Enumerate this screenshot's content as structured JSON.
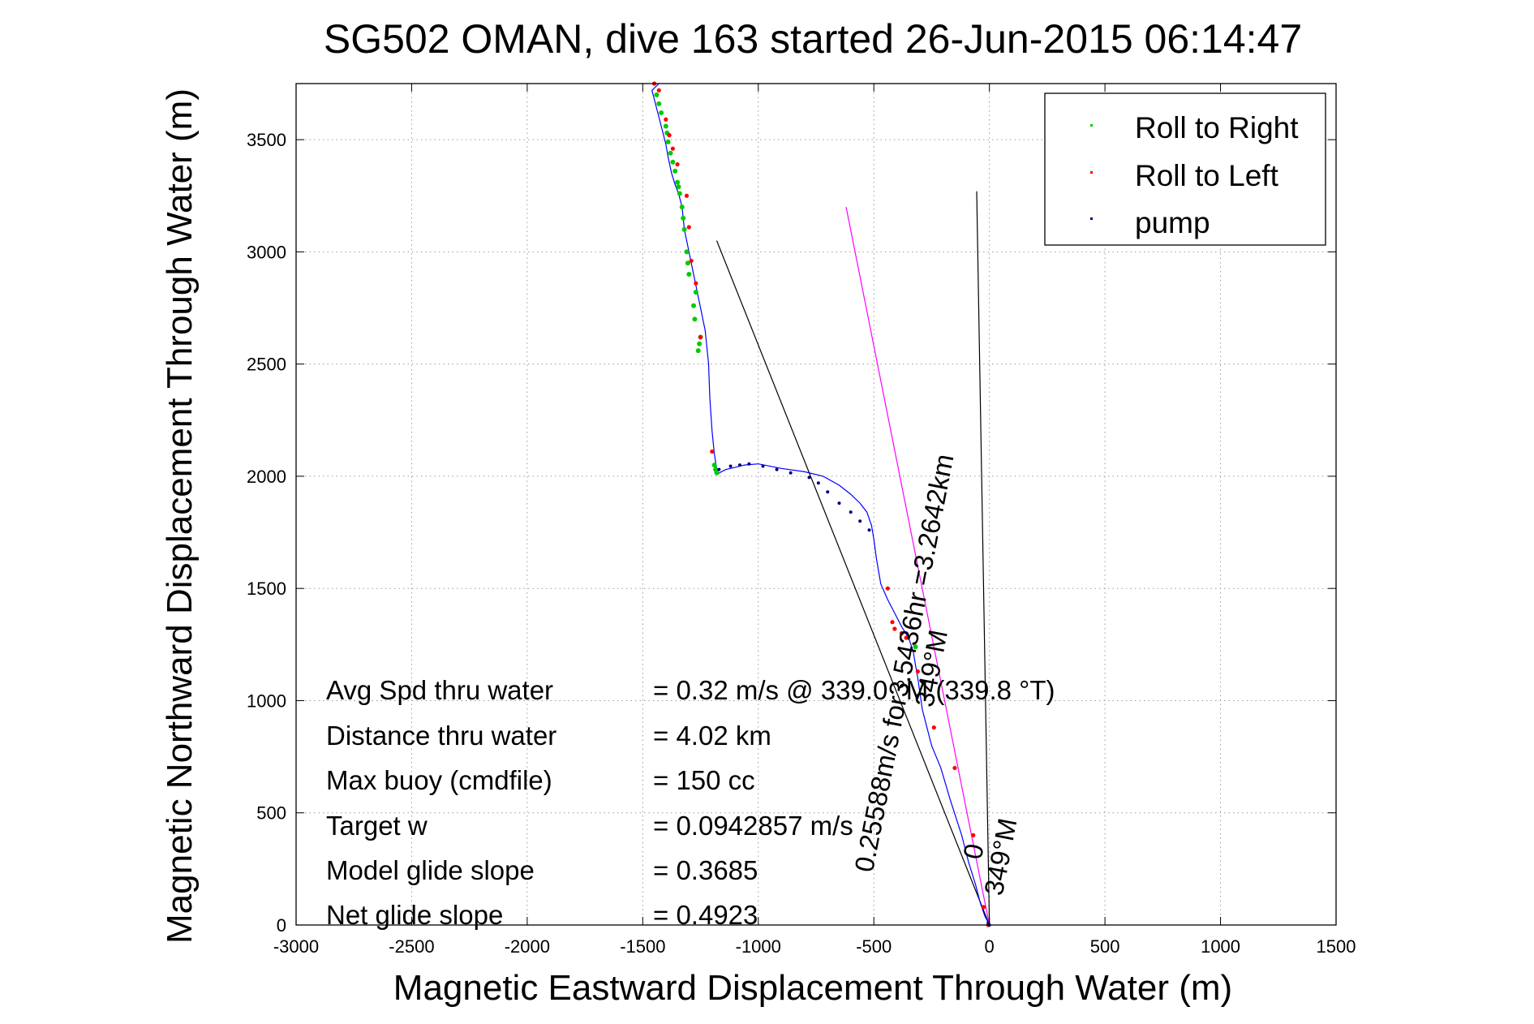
{
  "chart_data": {
    "type": "scatter",
    "title": "SG502 OMAN, dive 163 started 26-Jun-2015 06:14:47",
    "xlabel": "Magnetic Eastward Displacement Through Water (m)",
    "ylabel": "Magnetic Northward Displacement Through Water (m)",
    "xlim": [
      -3000,
      1500
    ],
    "ylim": [
      0,
      3750
    ],
    "x_ticks": [
      -3000,
      -2500,
      -2000,
      -1500,
      -1000,
      -500,
      0,
      500,
      1000,
      1500
    ],
    "y_ticks": [
      0,
      500,
      1000,
      1500,
      2000,
      2500,
      3000,
      3500
    ],
    "grid": true,
    "legend": {
      "placement": "top-right",
      "entries": [
        {
          "label": "Roll to Right",
          "color": "#00cc00"
        },
        {
          "label": "Roll to Left",
          "color": "#ff0000"
        },
        {
          "label": "pump",
          "color": "#000080"
        }
      ]
    },
    "track": {
      "color": "#0000ff",
      "x": [
        0,
        -20,
        -40,
        -60,
        -90,
        -120,
        -170,
        -210,
        -250,
        -270,
        -290,
        -300,
        -310,
        -320,
        -330,
        -350,
        -380,
        -410,
        -440,
        -470,
        -480,
        -490,
        -500,
        -510,
        -530,
        -560,
        -600,
        -650,
        -720,
        -800,
        -900,
        -1000,
        -1060,
        -1100,
        -1140,
        -1160,
        -1175,
        -1180,
        -1190,
        -1200,
        -1210,
        -1215,
        -1220,
        -1225,
        -1230,
        -1240,
        -1250,
        -1260,
        -1270,
        -1280,
        -1290,
        -1300,
        -1310,
        -1320,
        -1330,
        -1345,
        -1360,
        -1375,
        -1390,
        -1400,
        -1410,
        -1420,
        -1430,
        -1440,
        -1450,
        -1460,
        -1430
      ],
      "y": [
        0,
        40,
        100,
        180,
        280,
        400,
        560,
        700,
        800,
        880,
        960,
        1030,
        1100,
        1160,
        1220,
        1280,
        1330,
        1390,
        1450,
        1520,
        1580,
        1640,
        1720,
        1780,
        1840,
        1880,
        1920,
        1960,
        2000,
        2020,
        2035,
        2055,
        2050,
        2040,
        2030,
        2020,
        2010,
        2030,
        2100,
        2200,
        2350,
        2500,
        2550,
        2600,
        2650,
        2700,
        2750,
        2800,
        2850,
        2900,
        2950,
        3000,
        3050,
        3100,
        3200,
        3260,
        3300,
        3350,
        3420,
        3480,
        3520,
        3560,
        3600,
        3640,
        3680,
        3720,
        3750
      ]
    },
    "roll_right": {
      "color": "#00cc00",
      "x": [
        -1190,
        -1185,
        -1180,
        -1260,
        -1255,
        -1250,
        -1275,
        -1280,
        -1270,
        -1300,
        -1305,
        -1310,
        -1320,
        -1325,
        -1330,
        -1340,
        -1345,
        -1350,
        -1360,
        -1370,
        -1380,
        -1390,
        -1395,
        -1400,
        -1420,
        -1430,
        -1440,
        -320
      ],
      "y": [
        2050,
        2030,
        2015,
        2560,
        2590,
        2620,
        2700,
        2760,
        2820,
        2900,
        2950,
        3000,
        3100,
        3150,
        3200,
        3260,
        3290,
        3310,
        3360,
        3400,
        3440,
        3490,
        3530,
        3560,
        3620,
        3660,
        3700,
        1240
      ]
    },
    "roll_left": {
      "color": "#ff0000",
      "x": [
        -1200,
        -1250,
        -1270,
        -1290,
        -1300,
        -1310,
        -1350,
        -1370,
        -1385,
        -1400,
        -1430,
        -1450,
        -440,
        -420,
        -410,
        -380,
        -360,
        -310,
        -240,
        -150,
        -70,
        -25,
        -5
      ],
      "y": [
        2110,
        2620,
        2860,
        2960,
        3110,
        3250,
        3390,
        3460,
        3520,
        3590,
        3720,
        3750,
        1500,
        1350,
        1320,
        1300,
        1280,
        1130,
        880,
        700,
        400,
        80,
        0
      ]
    },
    "pump": {
      "color": "#000080",
      "x": [
        -1170,
        -1120,
        -1080,
        -1040,
        -980,
        -920,
        -860,
        -780,
        -740,
        -700,
        -650,
        -600,
        -560,
        -520,
        0,
        -5
      ],
      "y": [
        2030,
        2045,
        2050,
        2055,
        2045,
        2030,
        2015,
        1995,
        1970,
        1930,
        1880,
        1840,
        1800,
        1760,
        0,
        10
      ]
    },
    "lines": [
      {
        "color": "#000000",
        "x": [
          -1180,
          0
        ],
        "y": [
          3050,
          0
        ]
      },
      {
        "color": "#ff00ff",
        "x": [
          -620,
          0
        ],
        "y": [
          3200,
          0
        ]
      },
      {
        "color": "#000000",
        "x": [
          -55,
          0
        ],
        "y": [
          3270,
          0
        ]
      }
    ],
    "rotated_labels": [
      {
        "lines": [
          "0.25588m/s for3.5436hr =3.2642km",
          "349°M"
        ],
        "x": -330,
        "y": 1160,
        "angle": -79
      },
      {
        "lines": [
          "0",
          "349°M"
        ],
        "x": -30,
        "y": 320,
        "angle": -79
      }
    ],
    "annotations": [
      {
        "label": "Avg Spd thru water",
        "value": "=  0.32 m/s @  339.0  °M (339.8 °T)"
      },
      {
        "label": "Distance thru water",
        "value": "=  4.02 km"
      },
      {
        "label": "Max buoy (cmdfile)",
        "value": "= 150 cc"
      },
      {
        "label": "Target w",
        "value": "= 0.0942857 m/s"
      },
      {
        "label": "Model glide slope",
        "value": "= 0.3685"
      },
      {
        "label": "Net glide slope",
        "value": "= 0.4923"
      }
    ]
  }
}
